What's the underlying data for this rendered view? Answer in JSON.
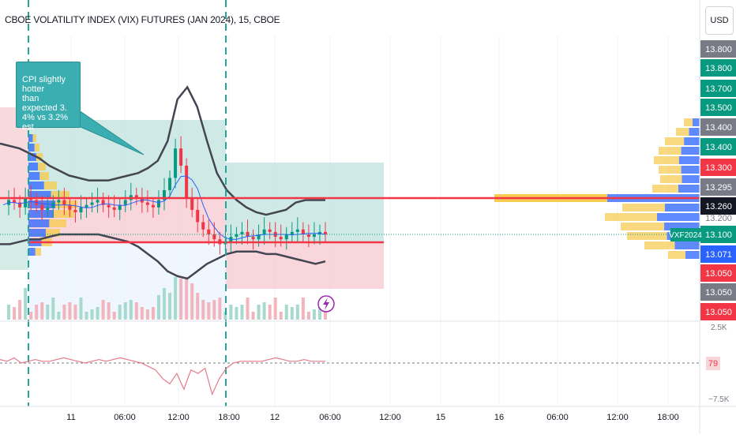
{
  "header": {
    "title": "CBOE VOLATILITY INDEX (VIX) FUTURES (JAN 2024), 15, CBOE",
    "currency": "USD"
  },
  "annotation": {
    "lines": [
      "CPI slightly hotter",
      "than expected 3.",
      "4% vs 3.2% est"
    ]
  },
  "chart_data": {
    "type": "line",
    "price_axis": {
      "labels": [
        {
          "value": "13.800",
          "color": "#787b86"
        },
        {
          "value": "13.800",
          "color": "#089981"
        },
        {
          "value": "13.700",
          "color": "#089981"
        },
        {
          "value": "13.500",
          "color": "#089981"
        },
        {
          "value": "13.400",
          "color": "#787b86"
        },
        {
          "value": "13.400",
          "color": "#089981"
        },
        {
          "value": "13.300",
          "color": "#f23645"
        },
        {
          "value": "13.295",
          "color": "#787b86"
        },
        {
          "value": "13.260",
          "color": "#131722"
        },
        {
          "value": "13.200",
          "color": "#ffffff"
        },
        {
          "value": "13.100",
          "color": "#089981"
        },
        {
          "value": "13.071",
          "color": "#2962ff"
        },
        {
          "value": "13.050",
          "color": "#f23645"
        },
        {
          "value": "13.050",
          "color": "#787b86"
        },
        {
          "value": "13.050",
          "color": "#f23645"
        }
      ],
      "symbol_tag": "VXF2024"
    },
    "volume_label": "2.5K",
    "oscillator": {
      "value": "79",
      "lower_label": "−7.5K"
    },
    "time_axis": [
      "11",
      "06:00",
      "12:00",
      "18:00",
      "12",
      "06:00",
      "12:00",
      "15",
      "16",
      "06:00",
      "12:00",
      "18:00"
    ],
    "close_series": [
      13.22,
      13.24,
      13.23,
      13.21,
      13.25,
      13.24,
      13.22,
      13.2,
      13.21,
      13.23,
      13.24,
      13.22,
      13.2,
      13.19,
      13.21,
      13.22,
      13.23,
      13.24,
      13.22,
      13.21,
      13.2,
      13.22,
      13.24,
      13.26,
      13.25,
      13.23,
      13.22,
      13.21,
      13.24,
      13.28,
      13.33,
      13.45,
      13.38,
      13.25,
      13.2,
      13.15,
      13.12,
      13.1,
      13.08,
      13.06,
      13.07,
      13.09,
      13.1,
      13.11,
      13.09,
      13.08,
      13.1,
      13.12,
      13.11,
      13.09,
      13.08,
      13.1,
      13.11,
      13.12,
      13.1,
      13.09,
      13.1,
      13.11,
      13.1
    ],
    "upper_band": [
      13.47,
      13.46,
      13.45,
      13.43,
      13.41,
      13.38,
      13.36,
      13.34,
      13.33,
      13.32,
      13.32,
      13.32,
      13.33,
      13.34,
      13.35,
      13.37,
      13.4,
      13.48,
      13.65,
      13.7,
      13.62,
      13.48,
      13.35,
      13.28,
      13.24,
      13.21,
      13.19,
      13.18,
      13.19,
      13.2,
      13.23,
      13.24,
      13.24,
      13.24
    ],
    "lower_band": [
      13.06,
      13.06,
      13.07,
      13.08,
      13.08,
      13.09,
      13.1,
      13.1,
      13.1,
      13.1,
      13.1,
      13.09,
      13.08,
      13.07,
      13.05,
      13.02,
      12.99,
      12.95,
      12.93,
      12.92,
      12.95,
      12.98,
      13.0,
      13.02,
      13.03,
      13.03,
      13.03,
      13.02,
      13.02,
      13.01,
      13.0,
      12.99,
      12.98,
      12.99
    ],
    "oscillator_series": [
      2,
      1,
      3,
      0,
      1,
      2,
      1,
      1,
      2,
      3,
      2,
      1,
      0,
      1,
      2,
      1,
      2,
      3,
      2,
      1,
      0,
      -2,
      -4,
      -9,
      -12,
      -6,
      -15,
      -4,
      -6,
      -3,
      -18,
      -9,
      -3,
      0,
      1,
      1,
      1,
      1,
      2,
      3,
      2,
      1,
      1,
      2,
      1,
      1,
      1
    ]
  }
}
